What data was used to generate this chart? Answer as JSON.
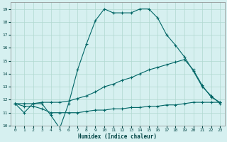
{
  "xlabel": "Humidex (Indice chaleur)",
  "bg_color": "#d6f0f0",
  "grid_color": "#b0d8d0",
  "line_color": "#006666",
  "xlim": [
    -0.5,
    23.5
  ],
  "ylim": [
    10,
    19.5
  ],
  "xticks": [
    0,
    1,
    2,
    3,
    4,
    5,
    6,
    7,
    8,
    9,
    10,
    11,
    12,
    13,
    14,
    15,
    16,
    17,
    18,
    19,
    20,
    21,
    22,
    23
  ],
  "yticks": [
    10,
    11,
    12,
    13,
    14,
    15,
    16,
    17,
    18,
    19
  ],
  "line1_x": [
    0,
    1,
    2,
    3,
    4,
    5,
    6,
    7,
    8,
    9,
    10,
    11,
    12,
    13,
    14,
    15,
    16,
    17,
    18,
    19,
    20,
    21,
    22,
    23
  ],
  "line1_y": [
    11.7,
    11.0,
    11.7,
    11.7,
    10.8,
    9.8,
    11.7,
    14.3,
    16.3,
    18.1,
    19.0,
    18.7,
    18.7,
    18.7,
    19.0,
    19.0,
    18.3,
    17.0,
    16.2,
    15.3,
    14.2,
    13.0,
    12.3,
    11.7
  ],
  "line2_x": [
    0,
    1,
    2,
    3,
    4,
    5,
    6,
    7,
    8,
    9,
    10,
    11,
    12,
    13,
    14,
    15,
    16,
    17,
    18,
    19,
    20,
    21,
    22,
    23
  ],
  "line2_y": [
    11.7,
    11.7,
    11.7,
    11.8,
    11.8,
    11.8,
    11.9,
    12.1,
    12.3,
    12.6,
    13.0,
    13.2,
    13.5,
    13.7,
    14.0,
    14.3,
    14.5,
    14.7,
    14.9,
    15.1,
    14.3,
    13.1,
    12.2,
    11.8
  ],
  "line3_x": [
    0,
    1,
    2,
    3,
    4,
    5,
    6,
    7,
    8,
    9,
    10,
    11,
    12,
    13,
    14,
    15,
    16,
    17,
    18,
    19,
    20,
    21,
    22,
    23
  ],
  "line3_y": [
    11.7,
    11.5,
    11.5,
    11.3,
    11.0,
    11.0,
    11.0,
    11.0,
    11.1,
    11.2,
    11.2,
    11.3,
    11.3,
    11.4,
    11.4,
    11.5,
    11.5,
    11.6,
    11.6,
    11.7,
    11.8,
    11.8,
    11.8,
    11.8
  ]
}
